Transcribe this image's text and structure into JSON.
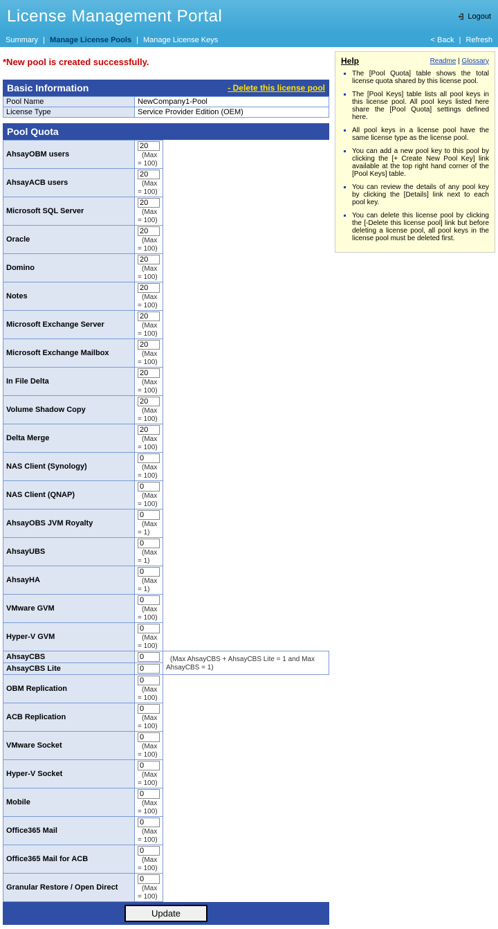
{
  "header": {
    "title": "License Management Portal",
    "logout": "Logout"
  },
  "nav": {
    "summary": "Summary",
    "pools": "Manage License Pools",
    "keys": "Manage License Keys",
    "back": "< Back",
    "refresh": "Refresh"
  },
  "success": "*New pool is created successfully.",
  "basic": {
    "heading": "Basic Information",
    "delete": "- Delete this license pool",
    "poolNameLabel": "Pool Name",
    "poolName": "NewCompany1-Pool",
    "licenseTypeLabel": "License Type",
    "licenseType": "Service Provider Edition (OEM)"
  },
  "quota": {
    "heading": "Pool Quota",
    "update": "Update",
    "rows": [
      {
        "label": "AhsayOBM users",
        "value": "20",
        "max": "(Max = 100)"
      },
      {
        "label": "AhsayACB users",
        "value": "20",
        "max": "(Max = 100)"
      },
      {
        "label": "Microsoft SQL Server",
        "value": "20",
        "max": "(Max = 100)"
      },
      {
        "label": "Oracle",
        "value": "20",
        "max": "(Max = 100)"
      },
      {
        "label": "Domino",
        "value": "20",
        "max": "(Max = 100)"
      },
      {
        "label": "Notes",
        "value": "20",
        "max": "(Max = 100)"
      },
      {
        "label": "Microsoft Exchange Server",
        "value": "20",
        "max": "(Max = 100)"
      },
      {
        "label": "Microsoft Exchange Mailbox",
        "value": "20",
        "max": "(Max = 100)"
      },
      {
        "label": "In File Delta",
        "value": "20",
        "max": "(Max = 100)"
      },
      {
        "label": "Volume Shadow Copy",
        "value": "20",
        "max": "(Max = 100)"
      },
      {
        "label": "Delta Merge",
        "value": "20",
        "max": "(Max = 100)"
      },
      {
        "label": "NAS Client (Synology)",
        "value": "0",
        "max": "(Max = 100)"
      },
      {
        "label": "NAS Client (QNAP)",
        "value": "0",
        "max": "(Max = 100)"
      },
      {
        "label": "AhsayOBS JVM Royalty",
        "value": "0",
        "max": "(Max = 1)"
      },
      {
        "label": "AhsayUBS",
        "value": "0",
        "max": "(Max = 1)"
      },
      {
        "label": "AhsayHA",
        "value": "0",
        "max": "(Max = 1)"
      },
      {
        "label": "VMware GVM",
        "value": "0",
        "max": "(Max = 100)"
      },
      {
        "label": "Hyper-V GVM",
        "value": "0",
        "max": "(Max = 100)"
      },
      {
        "label": "AhsayCBS",
        "value": "0",
        "max": "",
        "merged": "top"
      },
      {
        "label": "AhsayCBS Lite",
        "value": "0",
        "max": "(Max AhsayCBS + AhsayCBS Lite = 1 and Max AhsayCBS = 1)",
        "merged": "bottom"
      },
      {
        "label": "OBM Replication",
        "value": "0",
        "max": "(Max = 100)"
      },
      {
        "label": "ACB Replication",
        "value": "0",
        "max": "(Max = 100)"
      },
      {
        "label": "VMware Socket",
        "value": "0",
        "max": "(Max = 100)"
      },
      {
        "label": "Hyper-V Socket",
        "value": "0",
        "max": "(Max = 100)"
      },
      {
        "label": "Mobile",
        "value": "0",
        "max": "(Max = 100)"
      },
      {
        "label": "Office365 Mail",
        "value": "0",
        "max": "(Max = 100)"
      },
      {
        "label": "Office365 Mail for ACB",
        "value": "0",
        "max": "(Max = 100)"
      },
      {
        "label": "Granular Restore / Open Direct",
        "value": "0",
        "max": "(Max = 100)"
      }
    ]
  },
  "help": {
    "title": "Help",
    "readme": "Readme",
    "glossary": "Glossary",
    "items": [
      "The [Pool Quota] table shows the total license quota shared by this license pool.",
      "The [Pool Keys] table lists all pool keys in this license pool. All pool keys listed here share the [Pool Quota] settings defined here.",
      "All pool keys in a license pool have the same license type as the license pool.",
      "You can add a new pool key to this pool by clicking the [+ Create New Pool Key] link available at the top right hand corner of the [Pool Keys] table.",
      "You can review the details of any pool key by clicking the [Details] link next to each pool key.",
      "You can delete this license pool by clicking the [-Delete this license pool] link but before deleting a license pool, all pool keys in the license pool must be deleted first."
    ]
  }
}
